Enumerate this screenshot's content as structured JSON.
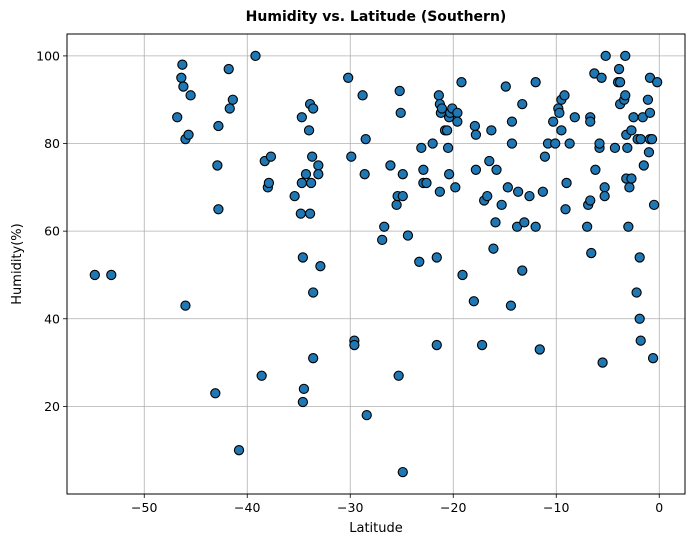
{
  "chart_data": {
    "type": "scatter",
    "title": "Humidity vs. Latitude (Southern)",
    "xlabel": "Latitude",
    "ylabel": "Humidity(%)",
    "xlim": [
      -57.5,
      2.5
    ],
    "ylim": [
      0,
      105
    ],
    "xticks": [
      -50,
      -40,
      -30,
      -20,
      -10,
      0
    ],
    "yticks": [
      20,
      40,
      60,
      80,
      100
    ],
    "grid": true,
    "marker_color": "#1f77b4",
    "marker_edge_color": "#000000",
    "series": [
      {
        "points": [
          [
            -54.8,
            50
          ],
          [
            -53.2,
            50
          ],
          [
            -46.8,
            86
          ],
          [
            -46.3,
            98
          ],
          [
            -46.4,
            95
          ],
          [
            -46.2,
            93
          ],
          [
            -46.0,
            81
          ],
          [
            -45.7,
            82
          ],
          [
            -45.5,
            91
          ],
          [
            -46.0,
            43
          ],
          [
            -43.1,
            23
          ],
          [
            -42.8,
            84
          ],
          [
            -42.9,
            75
          ],
          [
            -42.8,
            65
          ],
          [
            -41.8,
            97
          ],
          [
            -41.7,
            88
          ],
          [
            -41.4,
            90
          ],
          [
            -40.8,
            10
          ],
          [
            -39.2,
            100
          ],
          [
            -38.6,
            27
          ],
          [
            -38.3,
            76
          ],
          [
            -38.0,
            70
          ],
          [
            -37.9,
            71
          ],
          [
            -37.7,
            77
          ],
          [
            -35.4,
            68
          ],
          [
            -34.8,
            64
          ],
          [
            -34.7,
            86
          ],
          [
            -34.7,
            71
          ],
          [
            -34.6,
            54
          ],
          [
            -34.6,
            21
          ],
          [
            -34.5,
            24
          ],
          [
            -34.3,
            73
          ],
          [
            -34.0,
            83
          ],
          [
            -33.9,
            89
          ],
          [
            -33.9,
            64
          ],
          [
            -33.8,
            71
          ],
          [
            -33.6,
            88
          ],
          [
            -33.7,
            77
          ],
          [
            -33.6,
            46
          ],
          [
            -33.6,
            31
          ],
          [
            -33.1,
            75
          ],
          [
            -33.1,
            73
          ],
          [
            -32.9,
            52
          ],
          [
            -30.2,
            95
          ],
          [
            -29.9,
            77
          ],
          [
            -29.6,
            35
          ],
          [
            -29.6,
            34
          ],
          [
            -28.8,
            91
          ],
          [
            -28.6,
            73
          ],
          [
            -28.5,
            81
          ],
          [
            -28.4,
            18
          ],
          [
            -26.9,
            58
          ],
          [
            -26.7,
            61
          ],
          [
            -26.1,
            75
          ],
          [
            -25.5,
            66
          ],
          [
            -25.4,
            68
          ],
          [
            -25.3,
            27
          ],
          [
            -25.2,
            92
          ],
          [
            -25.1,
            87
          ],
          [
            -24.9,
            68
          ],
          [
            -24.9,
            73
          ],
          [
            -24.9,
            5
          ],
          [
            -24.4,
            59
          ],
          [
            -23.3,
            53
          ],
          [
            -23.1,
            79
          ],
          [
            -22.9,
            74
          ],
          [
            -22.9,
            71
          ],
          [
            -22.6,
            71
          ],
          [
            -22.0,
            80
          ],
          [
            -21.6,
            54
          ],
          [
            -21.6,
            34
          ],
          [
            -21.4,
            91
          ],
          [
            -21.3,
            89
          ],
          [
            -21.3,
            69
          ],
          [
            -21.2,
            87
          ],
          [
            -21.1,
            88
          ],
          [
            -20.8,
            83
          ],
          [
            -20.6,
            83
          ],
          [
            -20.5,
            79
          ],
          [
            -20.4,
            73
          ],
          [
            -20.4,
            86
          ],
          [
            -20.3,
            87
          ],
          [
            -20.1,
            88
          ],
          [
            -19.8,
            70
          ],
          [
            -19.6,
            87
          ],
          [
            -19.6,
            85
          ],
          [
            -19.2,
            94
          ],
          [
            -19.1,
            50
          ],
          [
            -18.0,
            44
          ],
          [
            -17.9,
            84
          ],
          [
            -17.8,
            82
          ],
          [
            -17.8,
            74
          ],
          [
            -17.2,
            34
          ],
          [
            -17.0,
            67
          ],
          [
            -16.7,
            68
          ],
          [
            -16.5,
            76
          ],
          [
            -16.3,
            83
          ],
          [
            -16.1,
            56
          ],
          [
            -15.9,
            62
          ],
          [
            -15.8,
            74
          ],
          [
            -15.3,
            66
          ],
          [
            -14.9,
            93
          ],
          [
            -14.7,
            70
          ],
          [
            -14.4,
            43
          ],
          [
            -14.3,
            85
          ],
          [
            -14.3,
            80
          ],
          [
            -13.8,
            61
          ],
          [
            -13.7,
            69
          ],
          [
            -13.3,
            89
          ],
          [
            -13.3,
            51
          ],
          [
            -13.1,
            62
          ],
          [
            -12.6,
            68
          ],
          [
            -12.0,
            94
          ],
          [
            -12.0,
            61
          ],
          [
            -11.6,
            33
          ],
          [
            -11.3,
            69
          ],
          [
            -11.1,
            77
          ],
          [
            -10.8,
            80
          ],
          [
            -10.3,
            85
          ],
          [
            -10.1,
            80
          ],
          [
            -9.8,
            88
          ],
          [
            -9.7,
            87
          ],
          [
            -9.5,
            90
          ],
          [
            -9.5,
            83
          ],
          [
            -9.2,
            91
          ],
          [
            -9.1,
            65
          ],
          [
            -9.0,
            71
          ],
          [
            -8.7,
            80
          ],
          [
            -8.2,
            86
          ],
          [
            -7.0,
            61
          ],
          [
            -6.9,
            66
          ],
          [
            -6.7,
            86
          ],
          [
            -6.7,
            85
          ],
          [
            -6.7,
            67
          ],
          [
            -6.6,
            55
          ],
          [
            -6.3,
            96
          ],
          [
            -6.2,
            74
          ],
          [
            -5.8,
            79
          ],
          [
            -5.8,
            80
          ],
          [
            -5.6,
            95
          ],
          [
            -5.5,
            30
          ],
          [
            -5.3,
            70
          ],
          [
            -5.3,
            68
          ],
          [
            -5.2,
            100
          ],
          [
            -4.3,
            79
          ],
          [
            -4.0,
            94
          ],
          [
            -3.9,
            97
          ],
          [
            -3.8,
            94
          ],
          [
            -3.8,
            89
          ],
          [
            -3.4,
            90
          ],
          [
            -3.3,
            91
          ],
          [
            -3.3,
            100
          ],
          [
            -3.2,
            82
          ],
          [
            -3.2,
            72
          ],
          [
            -3.1,
            79
          ],
          [
            -3.0,
            61
          ],
          [
            -2.9,
            70
          ],
          [
            -2.7,
            83
          ],
          [
            -2.7,
            72
          ],
          [
            -2.5,
            86
          ],
          [
            -2.2,
            46
          ],
          [
            -2.1,
            81
          ],
          [
            -1.9,
            54
          ],
          [
            -1.9,
            40
          ],
          [
            -1.8,
            35
          ],
          [
            -1.8,
            81
          ],
          [
            -1.6,
            86
          ],
          [
            -1.5,
            75
          ],
          [
            -1.1,
            90
          ],
          [
            -1.0,
            78
          ],
          [
            -0.9,
            87
          ],
          [
            -0.9,
            95
          ],
          [
            -0.9,
            81
          ],
          [
            -0.7,
            81
          ],
          [
            -0.6,
            31
          ],
          [
            -0.5,
            66
          ],
          [
            -0.2,
            94
          ]
        ]
      }
    ]
  }
}
